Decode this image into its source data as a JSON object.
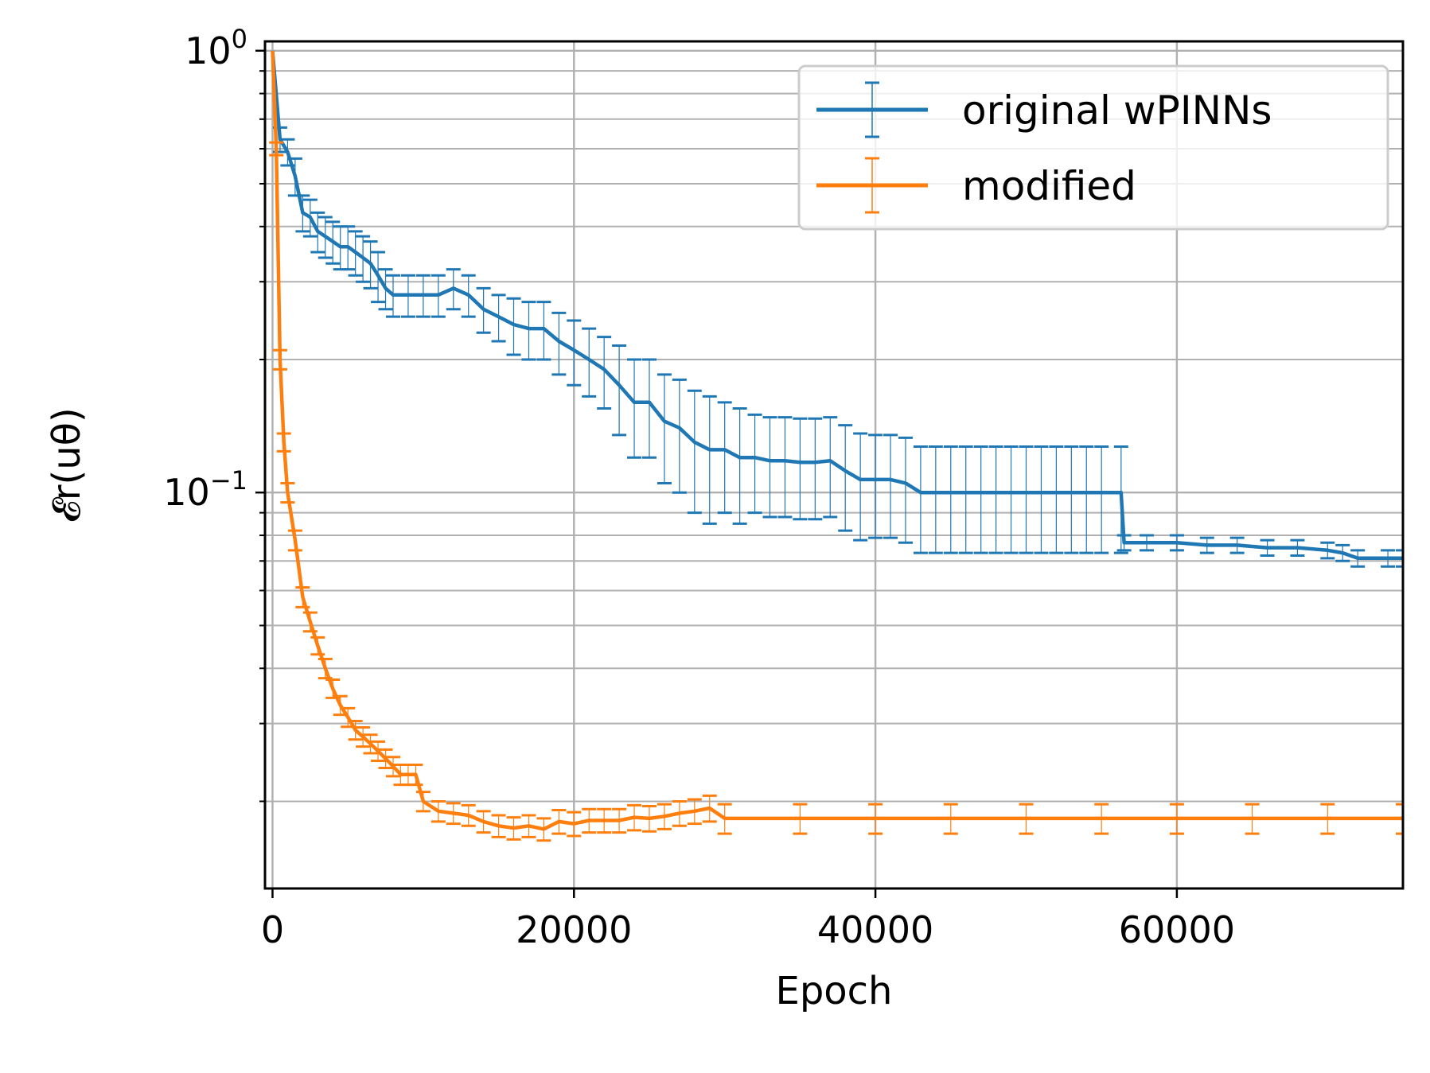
{
  "chart_data": {
    "type": "line",
    "title": "",
    "xlabel": "Epoch",
    "ylabel": "𝓔r(uθ)",
    "x_scale": "linear",
    "y_scale": "log",
    "xlim": [
      -500,
      75000
    ],
    "ylim": [
      0.0127,
      1.05
    ],
    "x_ticks": [
      0,
      20000,
      40000,
      60000
    ],
    "x_tick_labels": [
      "0",
      "20000",
      "40000",
      "60000"
    ],
    "y_ticks": [
      {
        "value": 1,
        "base": "10",
        "exp": "0"
      },
      {
        "value": 0.1,
        "base": "10",
        "exp": "−1"
      }
    ],
    "grid": "major and minor",
    "legend_position": "upper right",
    "series": [
      {
        "name": "original wPINNs",
        "color": "#1f77b4",
        "points": [
          [
            0,
            1.0,
            0.0
          ],
          [
            500,
            0.63,
            0.04
          ],
          [
            1000,
            0.59,
            0.04
          ],
          [
            1500,
            0.52,
            0.05
          ],
          [
            2000,
            0.43,
            0.04
          ],
          [
            2500,
            0.42,
            0.04
          ],
          [
            3000,
            0.39,
            0.04
          ],
          [
            3500,
            0.38,
            0.04
          ],
          [
            4000,
            0.37,
            0.04
          ],
          [
            4500,
            0.36,
            0.04
          ],
          [
            5000,
            0.36,
            0.04
          ],
          [
            5500,
            0.35,
            0.04
          ],
          [
            6000,
            0.34,
            0.04
          ],
          [
            6500,
            0.33,
            0.04
          ],
          [
            7000,
            0.31,
            0.04
          ],
          [
            7500,
            0.29,
            0.03
          ],
          [
            8000,
            0.28,
            0.03
          ],
          [
            9000,
            0.28,
            0.03
          ],
          [
            10000,
            0.28,
            0.03
          ],
          [
            11000,
            0.28,
            0.03
          ],
          [
            12000,
            0.29,
            0.03
          ],
          [
            13000,
            0.28,
            0.03
          ],
          [
            14000,
            0.26,
            0.03
          ],
          [
            15000,
            0.25,
            0.03
          ],
          [
            16000,
            0.24,
            0.035
          ],
          [
            17000,
            0.235,
            0.035
          ],
          [
            18000,
            0.235,
            0.035
          ],
          [
            19000,
            0.22,
            0.035
          ],
          [
            20000,
            0.21,
            0.035
          ],
          [
            21000,
            0.2,
            0.035
          ],
          [
            22000,
            0.19,
            0.035
          ],
          [
            23000,
            0.175,
            0.04
          ],
          [
            24000,
            0.16,
            0.04
          ],
          [
            25000,
            0.16,
            0.04
          ],
          [
            26000,
            0.145,
            0.04
          ],
          [
            27000,
            0.14,
            0.04
          ],
          [
            28000,
            0.13,
            0.04
          ],
          [
            29000,
            0.125,
            0.04
          ],
          [
            30000,
            0.125,
            0.035
          ],
          [
            31000,
            0.12,
            0.035
          ],
          [
            32000,
            0.12,
            0.03
          ],
          [
            33000,
            0.118,
            0.03
          ],
          [
            34000,
            0.118,
            0.03
          ],
          [
            35000,
            0.117,
            0.03
          ],
          [
            36000,
            0.117,
            0.03
          ],
          [
            37000,
            0.118,
            0.03
          ],
          [
            38000,
            0.112,
            0.03
          ],
          [
            39000,
            0.107,
            0.029
          ],
          [
            40000,
            0.107,
            0.028
          ],
          [
            41000,
            0.107,
            0.028
          ],
          [
            42000,
            0.105,
            0.028
          ],
          [
            43000,
            0.1,
            0.027
          ],
          [
            44000,
            0.1,
            0.027
          ],
          [
            45000,
            0.1,
            0.027
          ],
          [
            46000,
            0.1,
            0.027
          ],
          [
            47000,
            0.1,
            0.027
          ],
          [
            48000,
            0.1,
            0.027
          ],
          [
            49000,
            0.1,
            0.027
          ],
          [
            50000,
            0.1,
            0.027
          ],
          [
            51000,
            0.1,
            0.027
          ],
          [
            52000,
            0.1,
            0.027
          ],
          [
            53000,
            0.1,
            0.027
          ],
          [
            54000,
            0.1,
            0.027
          ],
          [
            55000,
            0.1,
            0.027
          ],
          [
            56300,
            0.1,
            0.027
          ],
          [
            56500,
            0.077,
            0.003
          ],
          [
            58000,
            0.077,
            0.003
          ],
          [
            60000,
            0.077,
            0.003
          ],
          [
            62000,
            0.076,
            0.003
          ],
          [
            64000,
            0.076,
            0.003
          ],
          [
            66000,
            0.075,
            0.003
          ],
          [
            68000,
            0.075,
            0.003
          ],
          [
            70000,
            0.074,
            0.003
          ],
          [
            71000,
            0.073,
            0.003
          ],
          [
            72000,
            0.071,
            0.003
          ],
          [
            74000,
            0.071,
            0.003
          ],
          [
            75000,
            0.071,
            0.003
          ]
        ]
      },
      {
        "name": "modified",
        "color": "#ff7f0e",
        "points": [
          [
            0,
            1.0,
            0.0
          ],
          [
            250,
            0.6,
            0.02
          ],
          [
            500,
            0.2,
            0.01
          ],
          [
            750,
            0.13,
            0.006
          ],
          [
            1000,
            0.1,
            0.005
          ],
          [
            1500,
            0.078,
            0.004
          ],
          [
            2000,
            0.058,
            0.003
          ],
          [
            2500,
            0.051,
            0.0025
          ],
          [
            3000,
            0.045,
            0.002
          ],
          [
            3500,
            0.04,
            0.002
          ],
          [
            4000,
            0.036,
            0.0017
          ],
          [
            4500,
            0.033,
            0.0016
          ],
          [
            5000,
            0.031,
            0.0015
          ],
          [
            5500,
            0.029,
            0.0014
          ],
          [
            6000,
            0.028,
            0.0014
          ],
          [
            6500,
            0.027,
            0.0013
          ],
          [
            7000,
            0.026,
            0.0013
          ],
          [
            7500,
            0.025,
            0.0012
          ],
          [
            8000,
            0.024,
            0.0012
          ],
          [
            8500,
            0.023,
            0.0012
          ],
          [
            9000,
            0.023,
            0.0012
          ],
          [
            9500,
            0.023,
            0.0012
          ],
          [
            10000,
            0.02,
            0.001
          ],
          [
            11000,
            0.019,
            0.001
          ],
          [
            12000,
            0.0188,
            0.001
          ],
          [
            13000,
            0.0186,
            0.001
          ],
          [
            14000,
            0.018,
            0.001
          ],
          [
            15000,
            0.0176,
            0.001
          ],
          [
            16000,
            0.0174,
            0.001
          ],
          [
            17000,
            0.0176,
            0.001
          ],
          [
            18000,
            0.0173,
            0.001
          ],
          [
            19000,
            0.018,
            0.0011
          ],
          [
            20000,
            0.0178,
            0.0011
          ],
          [
            21000,
            0.0181,
            0.0011
          ],
          [
            22000,
            0.0181,
            0.0011
          ],
          [
            23000,
            0.0181,
            0.0011
          ],
          [
            24000,
            0.0184,
            0.0012
          ],
          [
            25000,
            0.0183,
            0.0012
          ],
          [
            26000,
            0.0185,
            0.0012
          ],
          [
            27000,
            0.0188,
            0.0012
          ],
          [
            28000,
            0.019,
            0.0012
          ],
          [
            29000,
            0.0193,
            0.0013
          ],
          [
            30000,
            0.0183,
            0.0014
          ],
          [
            35000,
            0.0183,
            0.0014
          ],
          [
            40000,
            0.0183,
            0.0014
          ],
          [
            45000,
            0.0183,
            0.0014
          ],
          [
            50000,
            0.0183,
            0.0014
          ],
          [
            55000,
            0.0183,
            0.0014
          ],
          [
            60000,
            0.0183,
            0.0014
          ],
          [
            65000,
            0.0183,
            0.0014
          ],
          [
            70000,
            0.0183,
            0.0014
          ],
          [
            75000,
            0.0183,
            0.0014
          ]
        ]
      }
    ]
  }
}
